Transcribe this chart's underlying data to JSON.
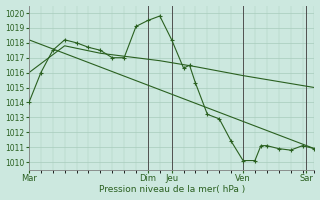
{
  "xlabel": "Pression niveau de la mer( hPa )",
  "bg_color": "#cce8df",
  "grid_color": "#a8ccbc",
  "line_color": "#2a6020",
  "ylim": [
    1009.5,
    1020.5
  ],
  "yticks": [
    1010,
    1011,
    1012,
    1013,
    1014,
    1015,
    1016,
    1017,
    1018,
    1019,
    1020
  ],
  "xlim": [
    0,
    144
  ],
  "day_pos": [
    0,
    60,
    72,
    108,
    140
  ],
  "day_lbl": [
    "Mar",
    "Dim",
    "Jeu",
    "Ven",
    "Sar"
  ],
  "vlines": [
    60,
    72,
    108,
    140
  ],
  "series1": [
    [
      0,
      1014.0
    ],
    [
      6,
      1016.0
    ],
    [
      12,
      1017.5
    ],
    [
      18,
      1018.2
    ],
    [
      24,
      1018.0
    ],
    [
      30,
      1017.7
    ],
    [
      36,
      1017.5
    ],
    [
      42,
      1017.0
    ],
    [
      48,
      1017.0
    ],
    [
      54,
      1019.1
    ],
    [
      60,
      1019.5
    ],
    [
      66,
      1019.8
    ],
    [
      72,
      1018.2
    ],
    [
      78,
      1016.3
    ],
    [
      81,
      1016.5
    ],
    [
      84,
      1015.3
    ],
    [
      90,
      1013.2
    ],
    [
      96,
      1012.9
    ],
    [
      102,
      1011.4
    ],
    [
      108,
      1010.1
    ],
    [
      114,
      1010.1
    ],
    [
      117,
      1011.1
    ],
    [
      120,
      1011.1
    ],
    [
      126,
      1010.9
    ],
    [
      132,
      1010.8
    ],
    [
      138,
      1011.1
    ],
    [
      144,
      1010.9
    ]
  ],
  "series2": [
    [
      0,
      1018.2
    ],
    [
      144,
      1010.9
    ]
  ],
  "series3": [
    [
      0,
      1016.0
    ],
    [
      18,
      1017.8
    ],
    [
      36,
      1017.3
    ],
    [
      66,
      1016.8
    ],
    [
      84,
      1016.4
    ],
    [
      108,
      1015.8
    ],
    [
      144,
      1015.0
    ]
  ]
}
